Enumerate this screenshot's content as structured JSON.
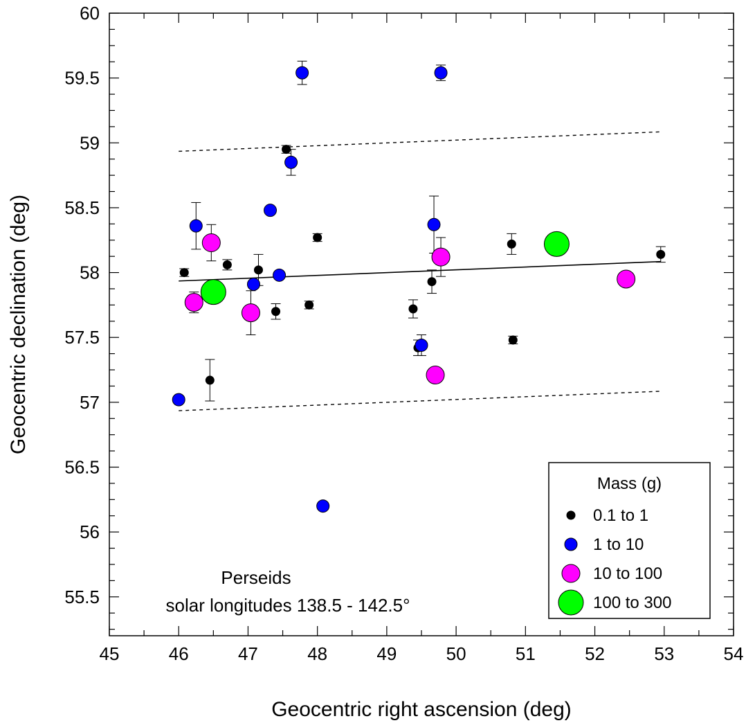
{
  "chart_data": {
    "type": "scatter",
    "title": "",
    "xlabel": "Geocentric right ascension (deg)",
    "ylabel": "Geocentric declination (deg)",
    "xlim": [
      45,
      54
    ],
    "ylim": [
      55.2,
      60
    ],
    "x_ticks": [
      45,
      46,
      47,
      48,
      49,
      50,
      51,
      52,
      53,
      54
    ],
    "y_ticks": [
      55.5,
      56,
      56.5,
      57,
      57.5,
      58,
      58.5,
      59,
      59.5,
      60
    ],
    "grid": false,
    "annotation": {
      "line1": "Perseids",
      "line2": "solar longitudes 138.5 - 142.5°"
    },
    "legend": {
      "title": "Mass (g)",
      "placement": "bottom-right",
      "entries": [
        {
          "label": "0.1 to 1",
          "color": "#000000"
        },
        {
          "label": "1 to 10",
          "color": "#0000ff"
        },
        {
          "label": "10 to 100",
          "color": "#ff00ff"
        },
        {
          "label": "100 to 300",
          "color": "#00ff00"
        }
      ]
    },
    "series": [
      {
        "name": "0.1 to 1",
        "color": "#000000",
        "points": [
          {
            "x": 46.08,
            "y": 58.0,
            "err": 0.03
          },
          {
            "x": 46.45,
            "y": 57.17,
            "err": 0.16
          },
          {
            "x": 46.7,
            "y": 58.06,
            "err": 0.04
          },
          {
            "x": 47.15,
            "y": 58.02,
            "err": 0.12
          },
          {
            "x": 47.4,
            "y": 57.7,
            "err": 0.06
          },
          {
            "x": 47.55,
            "y": 58.95,
            "err": 0.03
          },
          {
            "x": 47.88,
            "y": 57.75,
            "err": 0.03
          },
          {
            "x": 48.0,
            "y": 58.27,
            "err": 0.03
          },
          {
            "x": 49.38,
            "y": 57.72,
            "err": 0.07
          },
          {
            "x": 49.45,
            "y": 57.42,
            "err": 0.06
          },
          {
            "x": 49.65,
            "y": 57.93,
            "err": 0.09
          },
          {
            "x": 50.8,
            "y": 58.22,
            "err": 0.08
          },
          {
            "x": 50.82,
            "y": 57.48,
            "err": 0.03
          },
          {
            "x": 52.95,
            "y": 58.14,
            "err": 0.06
          }
        ]
      },
      {
        "name": "1 to 10",
        "color": "#0000ff",
        "points": [
          {
            "x": 46.0,
            "y": 57.02,
            "err": 0
          },
          {
            "x": 46.25,
            "y": 58.36,
            "err": 0.18
          },
          {
            "x": 47.08,
            "y": 57.91,
            "err": 0
          },
          {
            "x": 47.32,
            "y": 58.48,
            "err": 0
          },
          {
            "x": 47.45,
            "y": 57.98,
            "err": 0
          },
          {
            "x": 47.62,
            "y": 58.85,
            "err": 0.1
          },
          {
            "x": 47.78,
            "y": 59.54,
            "err": 0.09
          },
          {
            "x": 48.08,
            "y": 56.2,
            "err": 0
          },
          {
            "x": 49.5,
            "y": 57.44,
            "err": 0.08
          },
          {
            "x": 49.68,
            "y": 58.37,
            "err": 0.22
          },
          {
            "x": 49.78,
            "y": 59.54,
            "err": 0.06
          }
        ]
      },
      {
        "name": "10 to 100",
        "color": "#ff00ff",
        "points": [
          {
            "x": 46.22,
            "y": 57.77,
            "err": 0.08
          },
          {
            "x": 46.47,
            "y": 58.23,
            "err": 0.14
          },
          {
            "x": 47.04,
            "y": 57.69,
            "err": 0.17
          },
          {
            "x": 49.7,
            "y": 57.21,
            "err": 0
          },
          {
            "x": 49.78,
            "y": 58.12,
            "err": 0.15
          },
          {
            "x": 52.45,
            "y": 57.95,
            "err": 0
          }
        ]
      },
      {
        "name": "100 to 300",
        "color": "#00ff00",
        "points": [
          {
            "x": 46.5,
            "y": 57.85,
            "err": 0
          },
          {
            "x": 51.45,
            "y": 58.22,
            "err": 0
          }
        ]
      }
    ],
    "lines": [
      {
        "style": "solid",
        "x": [
          46.0,
          52.95
        ],
        "y": [
          57.935,
          58.085
        ]
      },
      {
        "style": "dashed",
        "x": [
          46.0,
          52.95
        ],
        "y": [
          58.935,
          59.085
        ]
      },
      {
        "style": "dashed",
        "x": [
          46.0,
          52.95
        ],
        "y": [
          56.935,
          57.085
        ]
      }
    ]
  }
}
